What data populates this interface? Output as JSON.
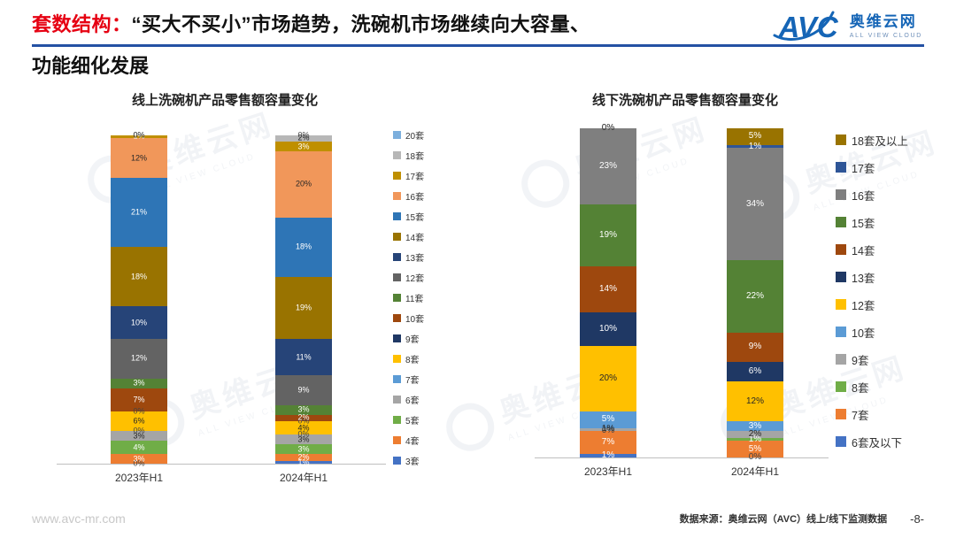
{
  "header": {
    "title_red": "套数结构：",
    "title_rest": "“买大不买小”市场趋势，洗碗机市场继续向大容量、",
    "title_line2": "功能细化发展",
    "logo": {
      "abbr": "AVC",
      "name": "奥维云网",
      "tagline": "ALL VIEW CLOUD"
    }
  },
  "watermark": {
    "text": "奥维云网",
    "tagline": "ALL VIEW CLOUD"
  },
  "footer": {
    "website": "www.avc-mr.com",
    "source": "数据来源：奥维云网（AVC）线上/线下监测数据",
    "page": "-8-"
  },
  "chart_data": [
    {
      "type": "bar",
      "stacked": true,
      "title": "线上洗碗机产品零售额容量变化",
      "categories": [
        "2023年H1",
        "2024年H1"
      ],
      "unit": "%",
      "ylim": [
        0,
        100
      ],
      "grid": false,
      "legend_position": "right",
      "value_labels": true,
      "series": [
        {
          "name": "3套",
          "color": "#4472C4",
          "values": [
            0,
            1
          ]
        },
        {
          "name": "4套",
          "color": "#ED7D31",
          "values": [
            3,
            2
          ]
        },
        {
          "name": "5套",
          "color": "#70AD47",
          "values": [
            4,
            3
          ]
        },
        {
          "name": "6套",
          "color": "#A5A5A5",
          "values": [
            3,
            3
          ]
        },
        {
          "name": "7套",
          "color": "#5B9BD5",
          "values": [
            0,
            0
          ]
        },
        {
          "name": "8套",
          "color": "#FFC000",
          "values": [
            6,
            4
          ]
        },
        {
          "name": "9套",
          "color": "#1F3864",
          "values": [
            0,
            0
          ]
        },
        {
          "name": "10套",
          "color": "#9E480E",
          "values": [
            7,
            2
          ]
        },
        {
          "name": "11套",
          "color": "#548235",
          "values": [
            3,
            3
          ]
        },
        {
          "name": "12套",
          "color": "#636363",
          "values": [
            12,
            9
          ]
        },
        {
          "name": "13套",
          "color": "#264478",
          "values": [
            10,
            11
          ]
        },
        {
          "name": "14套",
          "color": "#997300",
          "values": [
            18,
            19
          ]
        },
        {
          "name": "15套",
          "color": "#2E75B6",
          "values": [
            21,
            18
          ]
        },
        {
          "name": "16套",
          "color": "#F1975A",
          "values": [
            12,
            20
          ]
        },
        {
          "name": "17套",
          "color": "#BF8F00",
          "values": [
            1,
            3
          ]
        },
        {
          "name": "18套",
          "color": "#B7B7B7",
          "values": [
            0,
            2
          ]
        },
        {
          "name": "20套",
          "color": "#7CAFDD",
          "values": [
            0,
            0
          ]
        }
      ]
    },
    {
      "type": "bar",
      "stacked": true,
      "title": "线下洗碗机产品零售额容量变化",
      "categories": [
        "2023年H1",
        "2024年H1"
      ],
      "unit": "%",
      "ylim": [
        0,
        100
      ],
      "grid": false,
      "legend_position": "right",
      "value_labels": true,
      "series": [
        {
          "name": "6套及以下",
          "color": "#4472C4",
          "values": [
            1,
            0
          ]
        },
        {
          "name": "7套",
          "color": "#ED7D31",
          "values": [
            7,
            5
          ]
        },
        {
          "name": "8套",
          "color": "#70AD47",
          "values": [
            0,
            1
          ]
        },
        {
          "name": "9套",
          "color": "#A5A5A5",
          "values": [
            1,
            2
          ]
        },
        {
          "name": "10套",
          "color": "#5B9BD5",
          "values": [
            5,
            3
          ]
        },
        {
          "name": "12套",
          "color": "#FFC000",
          "values": [
            20,
            12
          ]
        },
        {
          "name": "13套",
          "color": "#1F3864",
          "values": [
            10,
            6
          ]
        },
        {
          "name": "14套",
          "color": "#9E480E",
          "values": [
            14,
            9
          ]
        },
        {
          "name": "15套",
          "color": "#548235",
          "values": [
            19,
            22
          ]
        },
        {
          "name": "16套",
          "color": "#7F7F7F",
          "values": [
            23,
            34
          ]
        },
        {
          "name": "17套",
          "color": "#2E5597",
          "values": [
            0,
            1
          ]
        },
        {
          "name": "18套及以上",
          "color": "#997300",
          "values": [
            0,
            5
          ]
        }
      ]
    }
  ]
}
